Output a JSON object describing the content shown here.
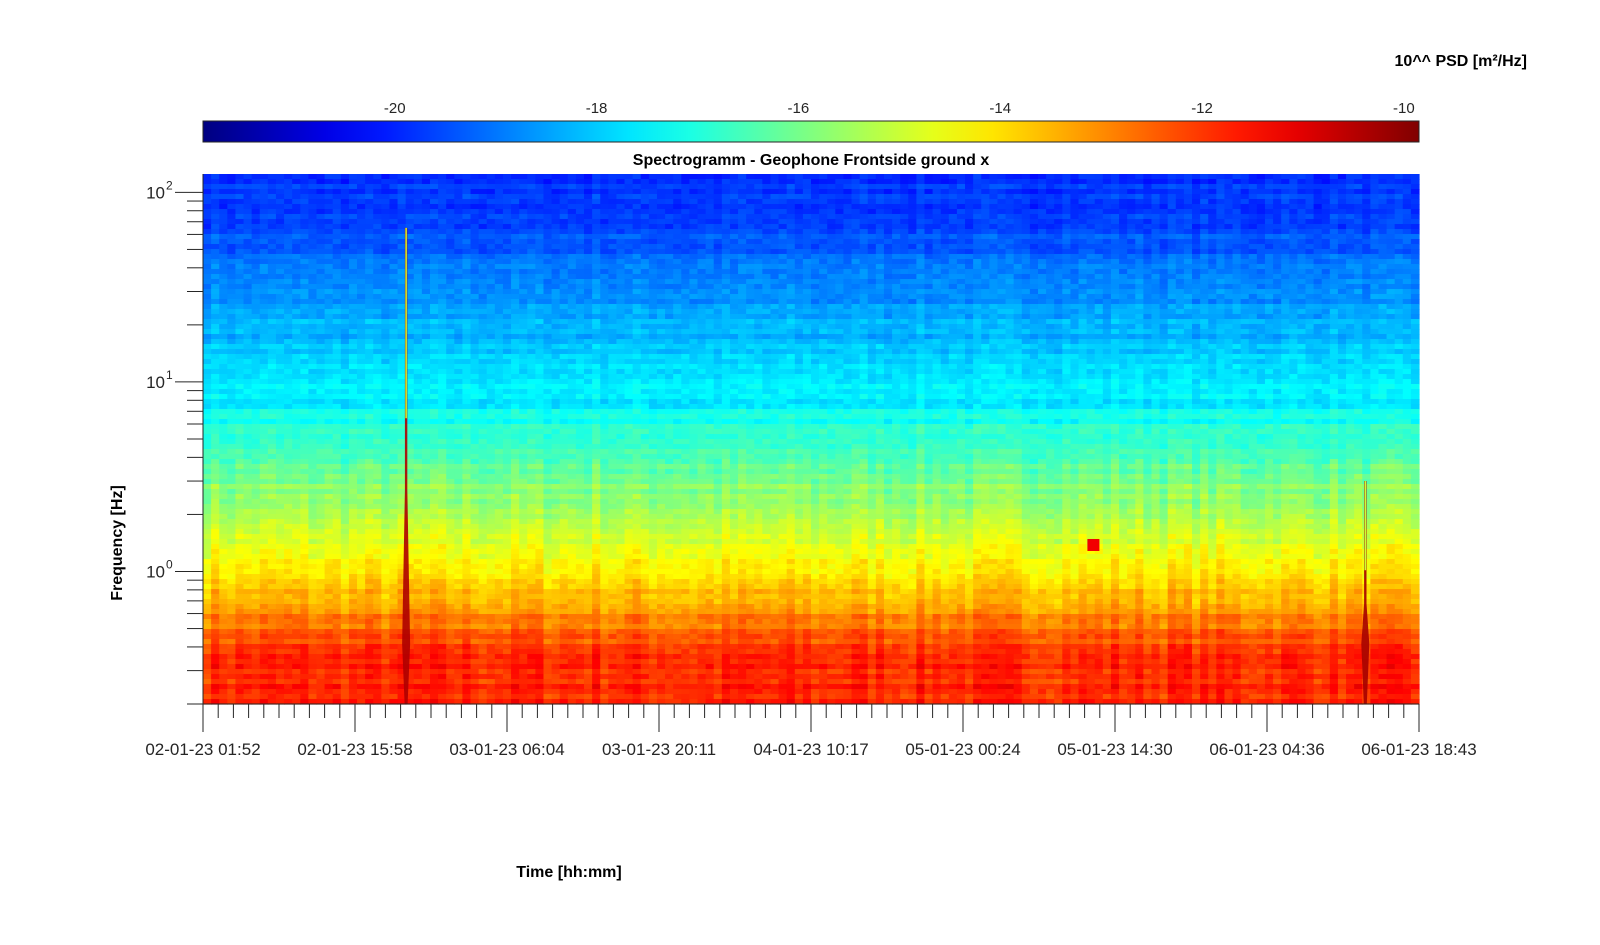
{
  "chart_data": {
    "type": "heatmap",
    "title": "Spectrogramm - Geophone Frontside ground x",
    "xlabel": "Time [hh:mm]",
    "ylabel": "Frequency [Hz]",
    "x_ticks": [
      "02-01-23 01:52",
      "02-01-23 15:58",
      "03-01-23 06:04",
      "03-01-23 20:11",
      "04-01-23 10:17",
      "05-01-23 00:24",
      "05-01-23 14:30",
      "06-01-23 04:36",
      "06-01-23 18:43"
    ],
    "y_scale": "log",
    "y_ticks": [
      {
        "base": "10",
        "exp": "0",
        "value": 1
      },
      {
        "base": "10",
        "exp": "1",
        "value": 10
      },
      {
        "base": "10",
        "exp": "2",
        "value": 100
      }
    ],
    "ylim": [
      0.2,
      125
    ],
    "colorbar": {
      "label": "10^^ PSD [m²/Hz]",
      "location": "top",
      "colormap": "jet",
      "ticks": [
        "-20",
        "-18",
        "-16",
        "-14",
        "-12",
        "-10"
      ],
      "tick_values": [
        -20,
        -18,
        -16,
        -14,
        -12,
        -10
      ],
      "range": [
        -21.9,
        -9.85
      ]
    },
    "bands": [
      {
        "f_from": 0.2,
        "f_to": 0.6,
        "log_psd": -11.8
      },
      {
        "f_from": 0.6,
        "f_to": 0.75,
        "log_psd": -13.3
      },
      {
        "f_from": 0.75,
        "f_to": 1.5,
        "log_psd": -14.2
      },
      {
        "f_from": 1.5,
        "f_to": 4,
        "log_psd": -15.6
      },
      {
        "f_from": 4,
        "f_to": 15,
        "log_psd": -17.5
      },
      {
        "f_from": 15,
        "f_to": 60,
        "log_psd": -18.7
      },
      {
        "f_from": 60,
        "f_to": 125,
        "log_psd": -19.8
      }
    ],
    "events": [
      {
        "time": "02-01-23 20:43",
        "f_top": 65,
        "log_psd": -10.4
      },
      {
        "time": "06-01-23 13:44",
        "f_top": 3,
        "log_psd": -10.3
      },
      {
        "time": "05-01-23 12:30",
        "f_at": 1.38,
        "log_psd": -11.2
      }
    ]
  },
  "colors": {
    "axis": "#262626",
    "background": "#ffffff"
  }
}
